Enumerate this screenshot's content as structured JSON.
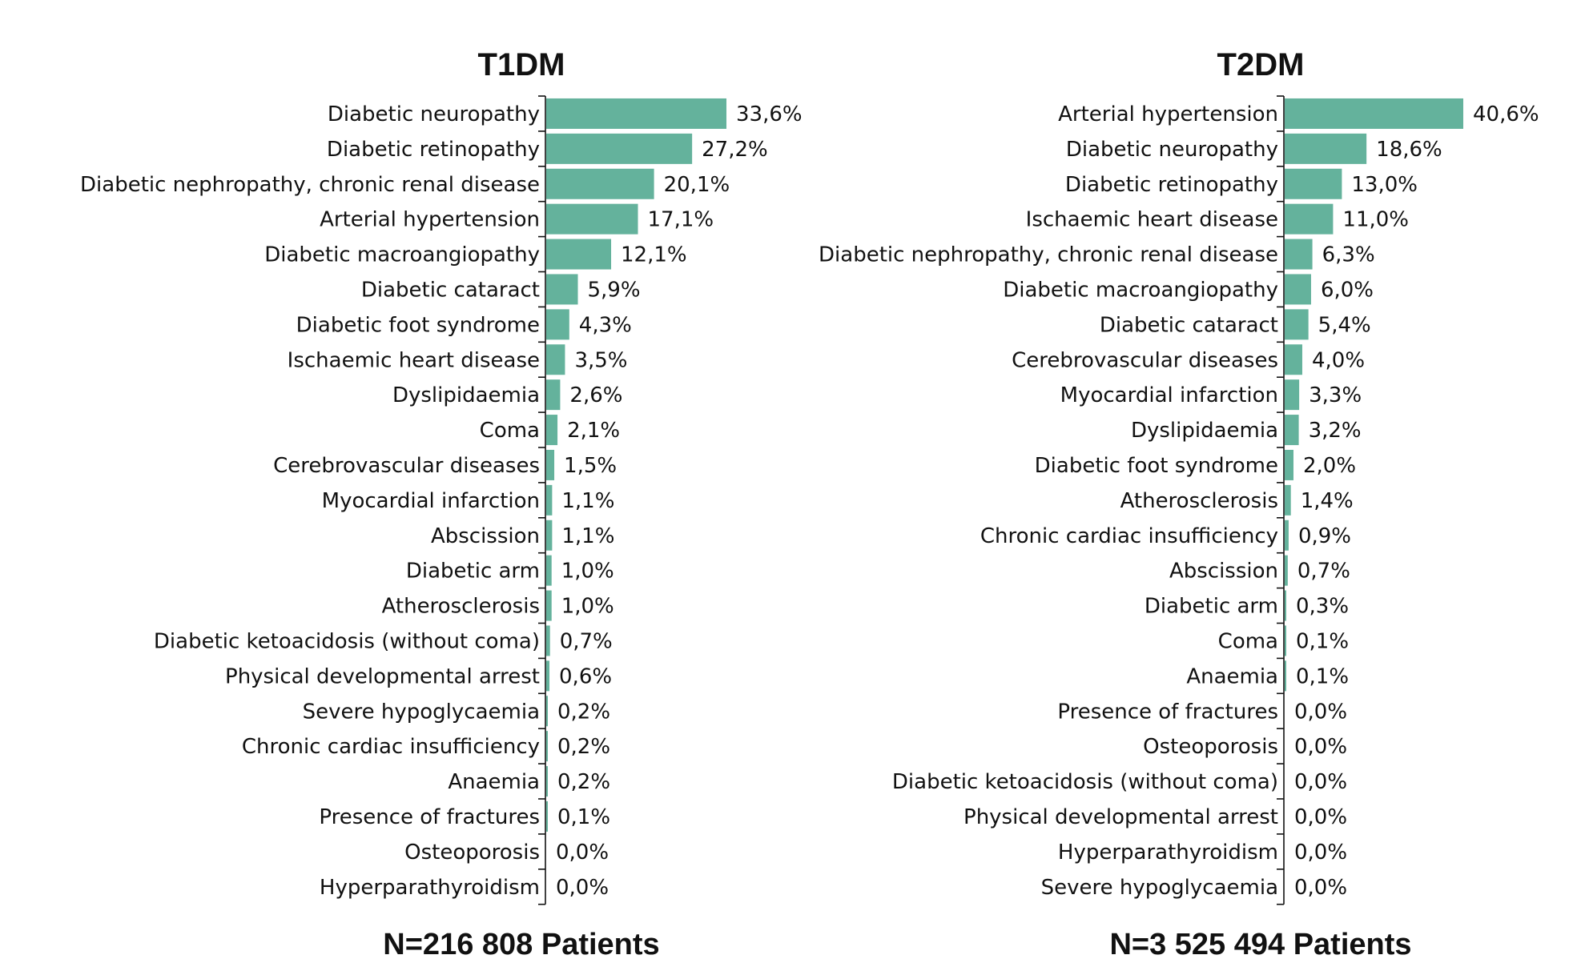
{
  "chart_data": [
    {
      "type": "bar",
      "orientation": "horizontal",
      "title": "T1DM",
      "footer": "N=216 808 Patients",
      "bar_color": "#64b29c",
      "xlabel": "",
      "ylabel": "",
      "xlim": [
        0,
        33.6
      ],
      "grid": false,
      "categories": [
        "Diabetic neuropathy",
        "Diabetic retinopathy",
        "Diabetic nephropathy, chronic renal disease",
        "Arterial hypertension",
        "Diabetic macroangiopathy",
        "Diabetic cataract",
        "Diabetic foot syndrome",
        "Ischaemic heart disease",
        "Dyslipidaemia",
        "Coma",
        "Cerebrovascular diseases",
        "Myocardial infarction",
        "Abscission",
        "Diabetic arm",
        "Atherosclerosis",
        "Diabetic ketoacidosis (without coma)",
        "Physical developmental arrest",
        "Severe hypoglycaemia",
        "Chronic cardiac insufficiency",
        "Anaemia",
        "Presence of fractures",
        "Osteoporosis",
        "Hyperparathyroidism"
      ],
      "values": [
        33.6,
        27.2,
        20.1,
        17.1,
        12.1,
        5.9,
        4.3,
        3.5,
        2.6,
        2.1,
        1.5,
        1.1,
        1.1,
        1.0,
        1.0,
        0.7,
        0.6,
        0.2,
        0.2,
        0.2,
        0.1,
        0.0,
        0.0
      ],
      "value_labels": [
        "33,6%",
        "27,2%",
        "20,1%",
        "17,1%",
        "12,1%",
        "5,9%",
        "4,3%",
        "3,5%",
        "2,6%",
        "2,1%",
        "1,5%",
        "1,1%",
        "1,1%",
        "1,0%",
        "1,0%",
        "0,7%",
        "0,6%",
        "0,2%",
        "0,2%",
        "0,2%",
        "0,1%",
        "0,0%",
        "0,0%"
      ]
    },
    {
      "type": "bar",
      "orientation": "horizontal",
      "title": "T2DM",
      "footer": "N=3 525 494 Patients",
      "bar_color": "#64b29c",
      "xlabel": "",
      "ylabel": "",
      "xlim": [
        0,
        40.6
      ],
      "grid": false,
      "categories": [
        "Arterial hypertension",
        "Diabetic neuropathy",
        "Diabetic retinopathy",
        "Ischaemic heart disease",
        "Diabetic nephropathy, chronic renal disease",
        "Diabetic macroangiopathy",
        "Diabetic cataract",
        "Cerebrovascular diseases",
        "Myocardial infarction",
        "Dyslipidaemia",
        "Diabetic foot syndrome",
        "Atherosclerosis",
        "Chronic cardiac insufficiency",
        "Abscission",
        "Diabetic arm",
        "Coma",
        "Anaemia",
        "Presence of fractures",
        "Osteoporosis",
        "Diabetic ketoacidosis (without coma)",
        "Physical developmental arrest",
        "Hyperparathyroidism",
        "Severe hypoglycaemia"
      ],
      "values": [
        40.6,
        18.6,
        13.0,
        11.0,
        6.3,
        6.0,
        5.4,
        4.0,
        3.3,
        3.2,
        2.0,
        1.4,
        0.9,
        0.7,
        0.3,
        0.1,
        0.1,
        0.0,
        0.0,
        0.0,
        0.0,
        0.0,
        0.0
      ],
      "value_labels": [
        "40,6%",
        "18,6%",
        "13,0%",
        "11,0%",
        "6,3%",
        "6,0%",
        "5,4%",
        "4,0%",
        "3,3%",
        "3,2%",
        "2,0%",
        "1,4%",
        "0,9%",
        "0,7%",
        "0,3%",
        "0,1%",
        "0,1%",
        "0,0%",
        "0,0%",
        "0,0%",
        "0,0%",
        "0,0%",
        "0,0%"
      ]
    }
  ]
}
